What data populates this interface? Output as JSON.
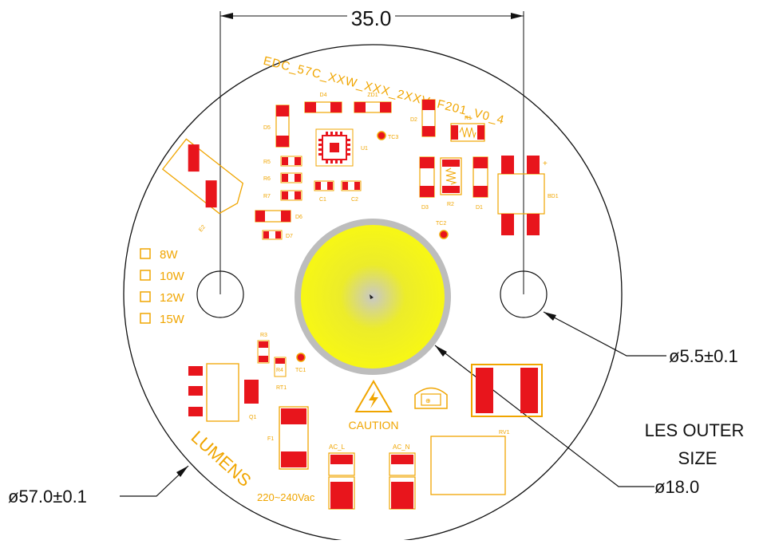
{
  "dimensions": {
    "width_label": "35.0",
    "hole_label": "ø5.5±0.1",
    "les_label": "ø18.0",
    "les_caption_1": "LES OUTER",
    "les_caption_2": "SIZE",
    "outer_label": "ø57.0±0.1"
  },
  "board": {
    "model_text": "EDC_57C_XXW_XXX_2XXV_F201_V0_4",
    "brand_text": "LUMENS",
    "voltage_text": "220~240Vac",
    "caution_text": "CAUTION",
    "wattage_options": [
      "8W",
      "10W",
      "12W",
      "15W"
    ]
  },
  "components": {
    "d4": "D4",
    "zd1": "ZD1",
    "d2": "D2",
    "d5": "D5",
    "r1": "R1",
    "u1": "U1",
    "tc3": "TC3",
    "r5": "R5",
    "r6": "R6",
    "r7": "R7",
    "c1": "C1",
    "c2": "C2",
    "d6": "D6",
    "d7": "D7",
    "d8": "D8",
    "d3": "D3",
    "r2": "R2",
    "d1": "D1",
    "bd1": "BD1",
    "tc2": "TC2",
    "e2": "E2",
    "r3": "R3",
    "r4": "R4",
    "tc1": "TC1",
    "rt1": "RT1",
    "q1": "Q1",
    "f1": "F1",
    "ac_l": "AC_L",
    "ac_n": "AC_N",
    "rv1": "RV1"
  },
  "colors": {
    "silkscreen": "#f0a500",
    "pad": "#e8151c",
    "les_core": "#f5f520",
    "les_ring": "#bcbcbc",
    "line": "#111111"
  }
}
